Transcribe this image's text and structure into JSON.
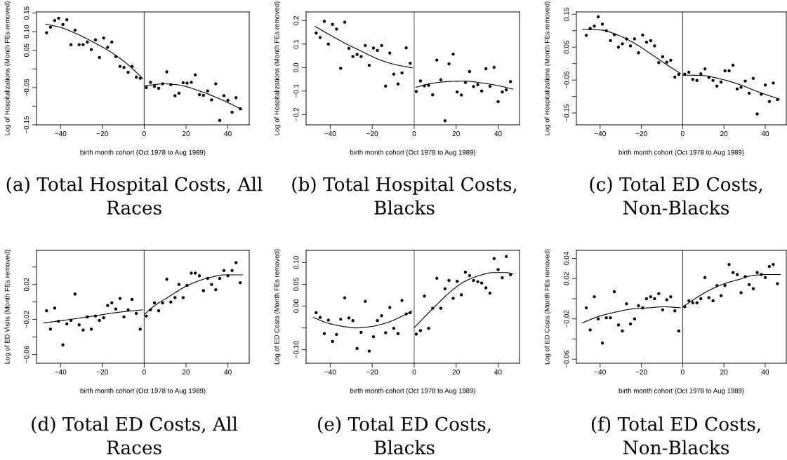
{
  "chart_data": [
    {
      "type": "scatter",
      "title": "(a) Total Hospital Costs, All\nRaces",
      "xlabel": "birth month cohort (Oct 1978 to Aug 1989)",
      "ylabel": "Log of Hospitalizations (Month FEs removed)",
      "xlim": [
        -51.5,
        50.2
      ],
      "xticks": [
        -40,
        -20,
        0,
        20,
        40
      ],
      "ylim": [
        -0.15,
        0.153
      ],
      "yticks": [
        0.15,
        {
          "value": 0.1,
          "label": "0.10"
        },
        0.05,
        {
          "value": 0,
          "label": null
        },
        -0.05,
        {
          "value": -0.1,
          "label": null
        },
        -0.15
      ],
      "ref_lines": [
        {
          "axis": "x",
          "value": 0,
          "color": "#4d4d4d"
        }
      ],
      "x": [
        -46.7,
        -44.8,
        -42.8,
        -40.9,
        -38.9,
        -37.0,
        -35.0,
        -33.1,
        -31.1,
        -29.2,
        -27.2,
        -25.3,
        -23.3,
        -21.4,
        -19.4,
        -17.5,
        -15.5,
        -13.6,
        -11.6,
        -9.7,
        -7.7,
        -5.8,
        -3.8,
        -1.9,
        1.0,
        3.0,
        4.9,
        6.9,
        8.8,
        10.8,
        12.7,
        14.7,
        16.6,
        18.6,
        20.5,
        22.5,
        24.4,
        26.4,
        28.3,
        30.3,
        32.2,
        34.2,
        36.1,
        38.1,
        40.0,
        42.0,
        43.9,
        45.9
      ],
      "series": [
        {
          "color": "#000000",
          "marker": "circle",
          "values": [
            0.097,
            0.112,
            0.13,
            0.136,
            0.119,
            0.132,
            0.065,
            0.104,
            0.065,
            0.065,
            0.072,
            0.052,
            0.078,
            0.031,
            0.083,
            0.058,
            0.072,
            0.033,
            0.007,
            0.004,
            -0.009,
            0.007,
            -0.022,
            -0.025,
            -0.05,
            -0.036,
            -0.047,
            -0.052,
            -0.04,
            -0.008,
            -0.042,
            -0.072,
            -0.065,
            -0.037,
            -0.038,
            -0.036,
            -0.016,
            -0.069,
            -0.071,
            -0.059,
            -0.083,
            -0.04,
            -0.138,
            -0.072,
            -0.084,
            -0.116,
            -0.077,
            -0.107
          ]
        },
        {
          "type": "line",
          "color": "#000000",
          "x": [
            -47.1,
            -40.4,
            -32.6,
            -23.7,
            -15.9,
            -8.1,
            -0.6
          ],
          "values": [
            0.12,
            0.112,
            0.095,
            0.07,
            0.045,
            0.013,
            -0.026
          ]
        },
        {
          "type": "line",
          "color": "#000000",
          "x": [
            0.3,
            9.7,
            16.4,
            26.4,
            36.4,
            46.8
          ],
          "values": [
            -0.045,
            -0.04,
            -0.043,
            -0.059,
            -0.081,
            -0.109
          ]
        }
      ]
    },
    {
      "type": "scatter",
      "title": "(b) Total Hospital Costs,\nBlacks",
      "xlabel": "birth month cohort (Oct 1978 to Aug 1989)",
      "ylabel": "Log of Hospitalizations (Month FEs removed)",
      "xlim": [
        -51.5,
        50.2
      ],
      "xticks": [
        -40,
        -20,
        0,
        20,
        40
      ],
      "ylim": [
        -0.244,
        0.237
      ],
      "yticks": [
        0.2,
        0.1,
        {
          "value": 0,
          "label": "0.0"
        },
        -0.1,
        -0.2
      ],
      "ref_lines": [
        {
          "axis": "x",
          "value": 0,
          "color": "#808080"
        }
      ],
      "x": [
        -46.7,
        -44.8,
        -42.8,
        -40.9,
        -38.9,
        -37.0,
        -35.0,
        -33.1,
        -31.1,
        -29.2,
        -27.2,
        -25.3,
        -23.3,
        -21.4,
        -19.4,
        -17.5,
        -15.5,
        -13.6,
        -11.6,
        -9.7,
        -7.7,
        -5.8,
        -3.8,
        -1.9,
        1.0,
        3.0,
        4.9,
        6.9,
        8.8,
        10.8,
        12.7,
        14.7,
        16.6,
        18.6,
        20.5,
        22.5,
        24.4,
        26.4,
        28.3,
        30.3,
        32.2,
        34.2,
        36.1,
        38.1,
        40.0,
        42.0,
        43.9,
        45.9
      ],
      "series": [
        {
          "color": "#000000",
          "marker": "circle",
          "values": [
            0.147,
            0.128,
            0.197,
            0.1,
            0.184,
            0.164,
            -0.003,
            0.193,
            0.082,
            0.047,
            0.056,
            0.047,
            0.094,
            0.009,
            0.083,
            0.073,
            0.094,
            -0.079,
            0.062,
            -0.028,
            -0.07,
            -0.023,
            0.084,
            0.018,
            -0.102,
            -0.057,
            -0.078,
            -0.076,
            -0.116,
            0.032,
            -0.052,
            -0.227,
            0.016,
            0.057,
            -0.104,
            -0.117,
            -0.064,
            -0.017,
            -0.081,
            -0.073,
            -0.1,
            -0.005,
            -0.08,
            0.001,
            -0.145,
            -0.104,
            -0.095,
            -0.06
          ]
        },
        {
          "type": "line",
          "color": "#000000",
          "x": [
            -47.3,
            -40.4,
            -32.6,
            -24.8,
            -17.0,
            -9.2,
            -0.7
          ],
          "values": [
            0.176,
            0.14,
            0.102,
            0.068,
            0.035,
            0.013,
            -0.002
          ]
        },
        {
          "type": "line",
          "color": "#000000",
          "x": [
            0.7,
            8.7,
            17.6,
            24.3,
            33.3,
            40.0,
            47.0
          ],
          "values": [
            -0.084,
            -0.067,
            -0.059,
            -0.058,
            -0.067,
            -0.077,
            -0.092
          ]
        }
      ]
    },
    {
      "type": "scatter",
      "title": "(c) Total ED Costs,\nNon-Blacks",
      "xlabel": "birth month cohort (Oct 1978 to Aug 1989)",
      "ylabel": "Log of Hospitalizations (Month FEs removed)",
      "xlim": [
        -51.5,
        50.2
      ],
      "xticks": [
        -40,
        -20,
        0,
        20,
        40
      ],
      "ylim": [
        -0.186,
        0.157
      ],
      "yticks": [
        0.15,
        {
          "value": 0.1,
          "label": null
        },
        0.05,
        {
          "value": 0,
          "label": null
        },
        -0.05,
        {
          "value": -0.1,
          "label": null
        },
        -0.15
      ],
      "ref_lines": [
        {
          "axis": "x",
          "value": 0,
          "color": "#4d4d4d"
        }
      ],
      "x": [
        -46.7,
        -44.8,
        -42.8,
        -40.9,
        -38.9,
        -37.0,
        -35.0,
        -33.1,
        -31.1,
        -29.2,
        -27.2,
        -25.3,
        -23.3,
        -21.4,
        -19.4,
        -17.5,
        -15.5,
        -13.6,
        -11.6,
        -9.7,
        -7.7,
        -5.8,
        -3.8,
        -1.9,
        1.0,
        3.0,
        4.9,
        6.9,
        8.8,
        10.8,
        12.7,
        14.7,
        16.6,
        18.6,
        20.5,
        22.5,
        24.4,
        26.4,
        28.3,
        30.3,
        32.2,
        34.2,
        36.1,
        38.1,
        40.0,
        42.0,
        43.9,
        45.9
      ],
      "series": [
        {
          "color": "#000000",
          "marker": "circle",
          "values": [
            0.086,
            0.107,
            0.114,
            0.142,
            0.12,
            0.1,
            0.07,
            0.088,
            0.05,
            0.06,
            0.075,
            0.054,
            0.075,
            0.033,
            0.087,
            0.065,
            0.07,
            0.054,
            0.003,
            0.021,
            0.004,
            0.01,
            -0.041,
            -0.033,
            -0.032,
            -0.026,
            -0.048,
            -0.051,
            -0.031,
            -0.016,
            -0.042,
            -0.051,
            -0.068,
            -0.056,
            -0.022,
            -0.022,
            -0.005,
            -0.077,
            -0.072,
            -0.053,
            -0.09,
            -0.045,
            -0.153,
            -0.093,
            -0.065,
            -0.115,
            -0.059,
            -0.109
          ]
        },
        {
          "type": "line",
          "color": "#000000",
          "x": [
            -48.4,
            -39.5,
            -31.6,
            -23.7,
            -15.8,
            -9.0,
            -1.1
          ],
          "values": [
            0.104,
            0.102,
            0.087,
            0.063,
            0.031,
            0.002,
            -0.03
          ]
        },
        {
          "type": "line",
          "color": "#000000",
          "x": [
            0.2,
            9.0,
            19.2,
            28.2,
            36.2,
            46.9
          ],
          "values": [
            -0.035,
            -0.036,
            -0.048,
            -0.065,
            -0.085,
            -0.108
          ]
        }
      ]
    },
    {
      "type": "scatter",
      "title": "(d) Total ED Costs, All\nRaces",
      "xlabel": "birth month cohort (Oct 1978 to Aug 1989)",
      "ylabel": "Log of ED Visits (Month FEs removed)",
      "xlim": [
        -51.5,
        50.2
      ],
      "xticks": [
        -40,
        -20,
        0,
        20,
        40
      ],
      "ylim": [
        -0.07,
        0.059
      ],
      "yticks": [
        {
          "value": 0.04,
          "label": null
        },
        0.02,
        {
          "value": 0,
          "label": null
        },
        -0.02,
        {
          "value": -0.04,
          "label": null
        },
        -0.06
      ],
      "ref_lines": [
        {
          "axis": "x",
          "value": 0,
          "color": "#4d4d4d"
        }
      ],
      "x": [
        -46.7,
        -44.8,
        -42.8,
        -40.9,
        -38.9,
        -37.0,
        -35.0,
        -33.1,
        -31.1,
        -29.2,
        -27.2,
        -25.3,
        -23.3,
        -21.4,
        -19.4,
        -17.5,
        -15.5,
        -13.6,
        -11.6,
        -9.7,
        -7.7,
        -5.8,
        -3.8,
        -1.9,
        1.0,
        3.0,
        4.9,
        6.9,
        8.8,
        10.8,
        12.7,
        14.7,
        16.6,
        18.6,
        20.5,
        22.5,
        24.4,
        26.4,
        28.3,
        30.3,
        32.2,
        34.2,
        36.1,
        38.1,
        40.0,
        42.0,
        43.9,
        45.9
      ],
      "series": [
        {
          "color": "#000000",
          "marker": "circle",
          "values": [
            -0.01,
            -0.031,
            -0.007,
            -0.022,
            -0.049,
            -0.025,
            -0.021,
            0.009,
            -0.026,
            -0.032,
            -0.017,
            -0.031,
            -0.016,
            -0.021,
            -0.018,
            -0.004,
            -0.001,
            -0.008,
            0.004,
            -0.017,
            -0.009,
            0.003,
            -0.013,
            -0.031,
            -0.016,
            -0.009,
            -0.001,
            -0.01,
            -0.001,
            0.026,
            0,
            0.005,
            0.02,
            0.005,
            0.019,
            0.033,
            0.033,
            0.03,
            0.013,
            0.027,
            0.02,
            0.014,
            0.027,
            0.036,
            0.03,
            0.036,
            0.045,
            0.022
          ]
        },
        {
          "type": "line",
          "color": "#000000",
          "x": [
            -48.1,
            -35.5,
            -24.2,
            -13.0,
            -0.8
          ],
          "values": [
            -0.024,
            -0.02,
            -0.016,
            -0.012,
            -0.009
          ]
        },
        {
          "type": "line",
          "color": "#000000",
          "x": [
            0.1,
            5.1,
            11.8,
            20.8,
            29.9,
            38.9,
            47.1
          ],
          "values": [
            -0.014,
            -0.004,
            0.006,
            0.019,
            0.027,
            0.031,
            0.031
          ]
        }
      ]
    },
    {
      "type": "scatter",
      "title": "(e) Total ED Costs,\nBlacks",
      "xlabel": "birth month cohort (Oct 1978 to Aug 1989)",
      "ylabel": "Log of ED Costs (Month FEs removed)",
      "xlim": [
        -51.5,
        50.2
      ],
      "xticks": [
        -40,
        -20,
        0,
        20,
        40
      ],
      "ylim": [
        -0.131,
        0.128
      ],
      "yticks": [
        {
          "value": 0.1,
          "label": "0.10"
        },
        0.05,
        {
          "value": 0,
          "label": "0.00"
        },
        {
          "value": -0.05,
          "label": null
        },
        {
          "value": -0.1,
          "label": "−0.10"
        }
      ],
      "ref_lines": [
        {
          "axis": "x",
          "value": 0,
          "color": "#808080"
        }
      ],
      "x": [
        -46.7,
        -44.8,
        -42.8,
        -40.9,
        -38.9,
        -37.0,
        -35.0,
        -33.1,
        -31.1,
        -29.2,
        -27.2,
        -25.3,
        -23.3,
        -21.4,
        -19.4,
        -17.5,
        -15.5,
        -13.6,
        -11.6,
        -9.7,
        -7.7,
        -5.8,
        -3.8,
        -1.9,
        1.0,
        3.0,
        4.9,
        6.9,
        8.8,
        10.8,
        12.7,
        14.7,
        16.6,
        18.6,
        20.5,
        22.5,
        24.4,
        26.4,
        28.3,
        30.3,
        32.2,
        34.2,
        36.1,
        38.1,
        40.0,
        42.0,
        43.9,
        45.9
      ],
      "series": [
        {
          "color": "#000000",
          "marker": "circle",
          "values": [
            -0.015,
            -0.026,
            -0.063,
            -0.032,
            -0.081,
            -0.065,
            -0.03,
            0.019,
            -0.027,
            -0.033,
            -0.097,
            -0.06,
            0.011,
            -0.103,
            -0.07,
            -0.033,
            -0.022,
            -0.061,
            -0.003,
            -0.051,
            -0.063,
            0.013,
            -0.018,
            -0.015,
            -0.064,
            -0.056,
            0.023,
            -0.051,
            -0.005,
            0.064,
            -0.005,
            0.04,
            0.059,
            0.018,
            0.057,
            0.026,
            0.078,
            0.07,
            0.059,
            0.056,
            0.053,
            0.042,
            0.03,
            0.109,
            0.084,
            0.065,
            0.114,
            0.072
          ]
        },
        {
          "type": "line",
          "color": "#000000",
          "x": [
            -48.1,
            -41.1,
            -33.2,
            -27.6,
            -20.8,
            -13.0,
            -6.2,
            -1.0
          ],
          "values": [
            -0.026,
            -0.039,
            -0.047,
            -0.05,
            -0.047,
            -0.038,
            -0.024,
            -0.011
          ]
        },
        {
          "type": "line",
          "color": "#000000",
          "x": [
            0.1,
            5.1,
            10.7,
            17.5,
            24.2,
            31.0,
            37.7,
            43.4,
            47.2
          ],
          "values": [
            -0.049,
            -0.024,
            0.003,
            0.034,
            0.057,
            0.07,
            0.077,
            0.077,
            0.074
          ]
        }
      ]
    },
    {
      "type": "scatter",
      "title": "(f) Total ED Costs,\nNon-Blacks",
      "xlabel": "birth month cohort (Oct 1978 to Aug 1989)",
      "ylabel": "Log of ED Costs (Month FEs removed)",
      "xlim": [
        -51.5,
        50.2
      ],
      "xticks": [
        -40,
        -20,
        0,
        20,
        40
      ],
      "ylim": [
        -0.064,
        0.048
      ],
      "yticks": [
        0.04,
        0.02,
        {
          "value": 0,
          "label": null
        },
        -0.02,
        {
          "value": -0.04,
          "label": null
        },
        -0.06
      ],
      "ref_lines": [
        {
          "axis": "x",
          "value": 0,
          "color": "#4d4d4d"
        }
      ],
      "x": [
        -46.7,
        -44.8,
        -42.8,
        -40.9,
        -38.9,
        -37.0,
        -35.0,
        -33.1,
        -31.1,
        -29.2,
        -27.2,
        -25.3,
        -23.3,
        -21.4,
        -19.4,
        -17.5,
        -15.5,
        -13.6,
        -11.6,
        -9.7,
        -7.7,
        -5.8,
        -3.8,
        -1.9,
        1.0,
        3.0,
        4.9,
        6.9,
        8.8,
        10.8,
        12.7,
        14.7,
        16.6,
        18.6,
        20.5,
        22.5,
        24.4,
        26.4,
        28.3,
        30.3,
        32.2,
        34.2,
        36.1,
        38.1,
        40.0,
        42.0,
        43.9,
        45.9
      ],
      "series": [
        {
          "color": "#000000",
          "marker": "circle",
          "values": [
            -0.009,
            -0.031,
            0.002,
            -0.02,
            -0.044,
            -0.019,
            -0.019,
            0.007,
            -0.026,
            -0.032,
            -0.005,
            -0.025,
            -0.02,
            -0.007,
            -0.009,
            0,
            0.002,
            0,
            0.005,
            -0.011,
            -0.001,
            0.002,
            -0.012,
            -0.032,
            -0.008,
            -0.002,
            -0.004,
            -0.004,
            0,
            0.021,
            0.001,
            -0.002,
            0.013,
            0.003,
            0.013,
            0.034,
            0.026,
            0.024,
            0.006,
            0.022,
            0.014,
            0.01,
            0.026,
            0.024,
            0.021,
            0.032,
            0.034,
            0.015
          ]
        },
        {
          "type": "line",
          "color": "#000000",
          "x": [
            -48.7,
            -39.8,
            -31.9,
            -24.0,
            -16.0,
            -9.2,
            -1.0
          ],
          "values": [
            -0.024,
            -0.017,
            -0.013,
            -0.01,
            -0.009,
            -0.008,
            -0.009
          ]
        },
        {
          "type": "line",
          "color": "#000000",
          "x": [
            0.1,
            6.7,
            13.5,
            20.3,
            27.1,
            33.9,
            40.7,
            47.3
          ],
          "values": [
            -0.008,
            0.001,
            0.009,
            0.015,
            0.019,
            0.023,
            0.024,
            0.024
          ]
        }
      ]
    }
  ]
}
